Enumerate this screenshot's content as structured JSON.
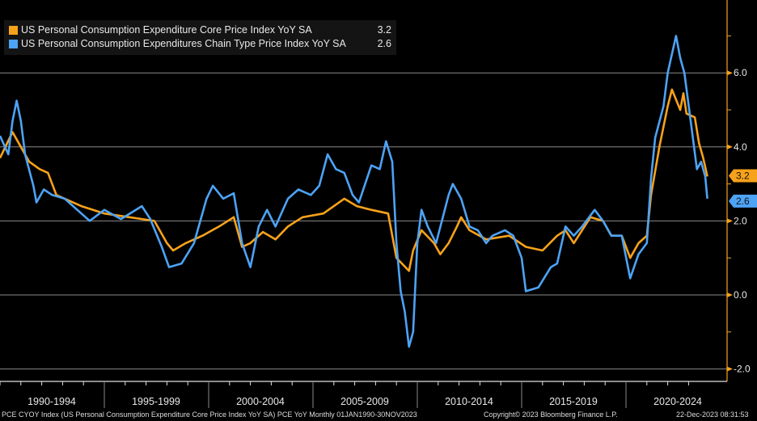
{
  "legend": [
    {
      "label": "US Personal Consumption Expenditure Core Price Index YoY SA",
      "value": "3.2",
      "color": "#f7a21b"
    },
    {
      "label": "US Personal Consumption Expenditures Chain Type Price Index YoY SA",
      "value": "2.6",
      "color": "#4da3f5"
    }
  ],
  "footer": {
    "left": "PCE CYOY Index (US Personal Consumption Expenditure Core Price Index YoY SA) PCE YoY  Monthly 01JAN1990-30NOV2023",
    "center": "Copyright© 2023 Bloomberg Finance L.P.",
    "right": "22-Dec-2023 08:31:53"
  },
  "chart_data": {
    "type": "line",
    "xlim": [
      1990,
      2023.92
    ],
    "ylim": [
      -2.2,
      7.8
    ],
    "yticks": [
      -2,
      0,
      2,
      4,
      6
    ],
    "ytick_labels": [
      "-2.0",
      "0.0",
      "2.0",
      "4.0",
      "6.0"
    ],
    "x_periods": [
      "1990-1994",
      "1995-1999",
      "2000-2004",
      "2005-2009",
      "2010-2014",
      "2015-2019",
      "2020-2024"
    ],
    "grid": true,
    "legend_position": "top-left",
    "series": [
      {
        "name": "US Personal Consumption Expenditure Core Price Index YoY SA",
        "color": "#f7a21b",
        "last": "3.2",
        "points": [
          [
            1990,
            3.7
          ],
          [
            1990.6,
            4.4
          ],
          [
            1991,
            4.0
          ],
          [
            1991.4,
            3.6
          ],
          [
            1991.9,
            3.4
          ],
          [
            1992.3,
            3.3
          ],
          [
            1992.7,
            2.7
          ],
          [
            1993.9,
            2.4
          ],
          [
            1995,
            2.2
          ],
          [
            1996.2,
            2.1
          ],
          [
            1997.4,
            2.0
          ],
          [
            1998,
            1.4
          ],
          [
            1998.3,
            1.2
          ],
          [
            1998.9,
            1.4
          ],
          [
            1999.7,
            1.6
          ],
          [
            2000.5,
            1.85
          ],
          [
            2001.2,
            2.1
          ],
          [
            2001.6,
            1.3
          ],
          [
            2002,
            1.4
          ],
          [
            2002.6,
            1.7
          ],
          [
            2003.2,
            1.5
          ],
          [
            2003.8,
            1.85
          ],
          [
            2004.5,
            2.1
          ],
          [
            2005.5,
            2.2
          ],
          [
            2006.5,
            2.6
          ],
          [
            2007.1,
            2.4
          ],
          [
            2007.8,
            2.3
          ],
          [
            2008.6,
            2.2
          ],
          [
            2009,
            1.0
          ],
          [
            2009.6,
            0.65
          ],
          [
            2009.8,
            1.2
          ],
          [
            2010.2,
            1.75
          ],
          [
            2010.8,
            1.4
          ],
          [
            2011.1,
            1.1
          ],
          [
            2011.5,
            1.4
          ],
          [
            2011.9,
            1.85
          ],
          [
            2012.1,
            2.1
          ],
          [
            2012.5,
            1.75
          ],
          [
            2013.3,
            1.5
          ],
          [
            2014.4,
            1.6
          ],
          [
            2015.2,
            1.3
          ],
          [
            2016,
            1.2
          ],
          [
            2016.7,
            1.6
          ],
          [
            2017.1,
            1.75
          ],
          [
            2017.5,
            1.4
          ],
          [
            2018.3,
            2.1
          ],
          [
            2018.9,
            2.0
          ],
          [
            2019.3,
            1.6
          ],
          [
            2019.8,
            1.6
          ],
          [
            2020.2,
            1.0
          ],
          [
            2020.6,
            1.4
          ],
          [
            2021,
            1.6
          ],
          [
            2021.2,
            2.7
          ],
          [
            2021.6,
            4.0
          ],
          [
            2022,
            5.1
          ],
          [
            2022.2,
            5.55
          ],
          [
            2022.6,
            5.0
          ],
          [
            2022.75,
            5.45
          ],
          [
            2022.9,
            4.9
          ],
          [
            2023.3,
            4.8
          ],
          [
            2023.5,
            4.1
          ],
          [
            2023.7,
            3.7
          ],
          [
            2023.9,
            3.2
          ]
        ]
      },
      {
        "name": "US Personal Consumption Expenditures Chain Type Price Index YoY SA",
        "color": "#4da3f5",
        "last": "2.6",
        "points": [
          [
            1990,
            4.3
          ],
          [
            1990.4,
            3.8
          ],
          [
            1990.6,
            4.7
          ],
          [
            1990.8,
            5.25
          ],
          [
            1991,
            4.7
          ],
          [
            1991.2,
            3.8
          ],
          [
            1991.6,
            2.95
          ],
          [
            1991.75,
            2.5
          ],
          [
            1992.1,
            2.85
          ],
          [
            1992.5,
            2.7
          ],
          [
            1993.1,
            2.6
          ],
          [
            1993.9,
            2.2
          ],
          [
            1994.3,
            2.0
          ],
          [
            1995,
            2.3
          ],
          [
            1995.8,
            2.05
          ],
          [
            1996.8,
            2.4
          ],
          [
            1997.2,
            2.05
          ],
          [
            1997.75,
            1.3
          ],
          [
            1998.1,
            0.75
          ],
          [
            1998.7,
            0.85
          ],
          [
            1999.3,
            1.4
          ],
          [
            1999.9,
            2.6
          ],
          [
            2000.2,
            2.95
          ],
          [
            2000.7,
            2.6
          ],
          [
            2001.2,
            2.75
          ],
          [
            2001.6,
            1.4
          ],
          [
            2002,
            0.75
          ],
          [
            2002.4,
            1.85
          ],
          [
            2002.8,
            2.3
          ],
          [
            2003.2,
            1.85
          ],
          [
            2003.8,
            2.6
          ],
          [
            2004.3,
            2.85
          ],
          [
            2004.9,
            2.7
          ],
          [
            2005.3,
            2.95
          ],
          [
            2005.7,
            3.8
          ],
          [
            2006.1,
            3.4
          ],
          [
            2006.5,
            3.3
          ],
          [
            2006.9,
            2.7
          ],
          [
            2007.2,
            2.5
          ],
          [
            2007.8,
            3.5
          ],
          [
            2008.2,
            3.4
          ],
          [
            2008.5,
            4.15
          ],
          [
            2008.8,
            3.6
          ],
          [
            2009,
            1.4
          ],
          [
            2009.2,
            0.1
          ],
          [
            2009.4,
            -0.45
          ],
          [
            2009.6,
            -1.4
          ],
          [
            2009.8,
            -1.0
          ],
          [
            2010,
            1.4
          ],
          [
            2010.2,
            2.3
          ],
          [
            2010.5,
            1.85
          ],
          [
            2010.9,
            1.4
          ],
          [
            2011.5,
            2.7
          ],
          [
            2011.7,
            3.0
          ],
          [
            2012.1,
            2.6
          ],
          [
            2012.5,
            1.85
          ],
          [
            2012.9,
            1.75
          ],
          [
            2013.3,
            1.4
          ],
          [
            2013.6,
            1.6
          ],
          [
            2014.2,
            1.75
          ],
          [
            2014.6,
            1.6
          ],
          [
            2015,
            1.0
          ],
          [
            2015.2,
            0.1
          ],
          [
            2015.8,
            0.2
          ],
          [
            2016.4,
            0.75
          ],
          [
            2016.7,
            0.85
          ],
          [
            2017.1,
            1.85
          ],
          [
            2017.5,
            1.6
          ],
          [
            2017.9,
            1.85
          ],
          [
            2018.5,
            2.3
          ],
          [
            2018.9,
            2.0
          ],
          [
            2019.3,
            1.6
          ],
          [
            2019.8,
            1.6
          ],
          [
            2020.2,
            0.45
          ],
          [
            2020.6,
            1.1
          ],
          [
            2021,
            1.4
          ],
          [
            2021.2,
            3.15
          ],
          [
            2021.4,
            4.25
          ],
          [
            2021.8,
            5.1
          ],
          [
            2022,
            6.0
          ],
          [
            2022.4,
            7.0
          ],
          [
            2022.6,
            6.4
          ],
          [
            2022.8,
            6.0
          ],
          [
            2023.1,
            4.7
          ],
          [
            2023.4,
            3.4
          ],
          [
            2023.6,
            3.6
          ],
          [
            2023.8,
            3.2
          ],
          [
            2023.9,
            2.6
          ]
        ]
      }
    ]
  }
}
